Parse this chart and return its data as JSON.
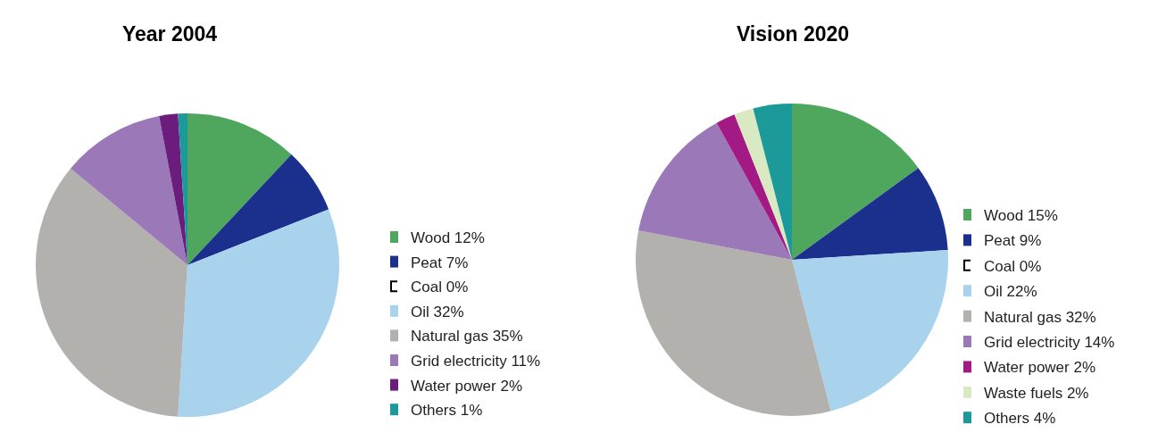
{
  "chart_data": [
    {
      "type": "pie",
      "title": "Year 2004",
      "legend": "right",
      "categories": [
        "Wood 12%",
        "Peat 7%",
        "Coal 0%",
        "Oil 32%",
        "Natural gas 35%",
        "Grid electricity 11%",
        "Water power 2%",
        "Others 1%"
      ],
      "values": [
        12,
        7,
        0,
        32,
        35,
        11,
        2,
        1
      ],
      "colors": [
        "#4ea75c",
        "#1b2f8c",
        "#000000",
        "#a9d3ec",
        "#b3b1ad",
        "#9b79b8",
        "#6b1c7c",
        "#1c9a9a"
      ]
    },
    {
      "type": "pie",
      "title": "Vision 2020",
      "legend": "right",
      "categories": [
        "Wood 15%",
        "Peat 9%",
        "Coal 0%",
        "Oil 22%",
        "Natural gas 32%",
        "Grid electricity 14%",
        "Water power 2%",
        "Waste fuels 2%",
        "Others 4%"
      ],
      "values": [
        15,
        9,
        0,
        22,
        32,
        14,
        2,
        2,
        4
      ],
      "colors": [
        "#4ea75c",
        "#1b2f8c",
        "#000000",
        "#a9d3ec",
        "#b3b1ad",
        "#9b79b8",
        "#a31a84",
        "#d9e9c2",
        "#1c9a9a"
      ]
    }
  ]
}
